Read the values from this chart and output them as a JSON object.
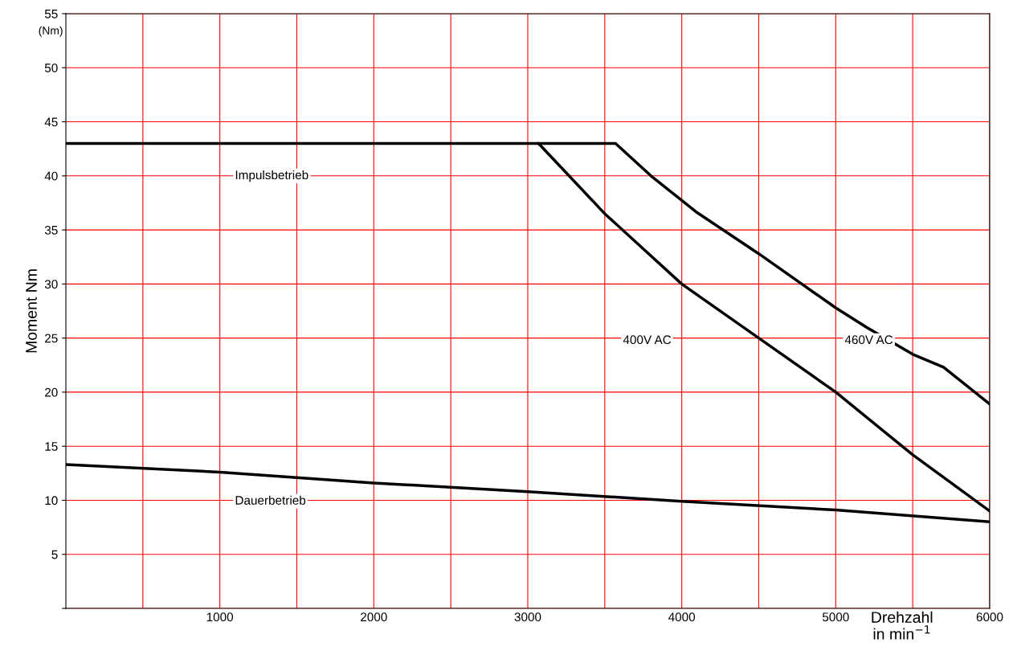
{
  "chart_data": {
    "type": "line",
    "xlabel": "Drehzahl\nin min$^{−1}$",
    "ylabel": "Moment Nm",
    "series": [
      {
        "color": "#000000",
        "x": [
          0,
          3070,
          3500,
          4000,
          4500,
          5000,
          5500,
          6000
        ],
        "values": [
          43,
          43,
          36.5,
          30,
          25,
          20,
          14.2,
          9
        ]
      },
      {
        "color": "#000000",
        "x": [
          3070,
          3570,
          3800,
          4100,
          4500,
          5000,
          5200,
          5500,
          5700,
          6000
        ],
        "values": [
          43,
          43,
          40,
          36.6,
          32.8,
          27.8,
          26,
          23.5,
          22.3,
          18.9
        ]
      },
      {
        "color": "#000000",
        "x": [
          0,
          1000,
          2000,
          3000,
          4000,
          5000,
          6000
        ],
        "values": [
          13.3,
          12.6,
          11.6,
          10.8,
          9.9,
          9.1,
          8.0
        ]
      }
    ],
    "annotations": [
      "(Nm)",
      "Impulsbetrieb",
      "Dauerbetrieb",
      "400V AC",
      "460V AC"
    ],
    "xlim": [
      0,
      6000
    ],
    "xticks": [
      {
        "value": 500,
        "label": null
      },
      1000,
      {
        "value": 1500,
        "label": null
      },
      2000,
      {
        "value": 2500,
        "label": null
      },
      3000,
      {
        "value": 3500,
        "label": null
      },
      4000,
      {
        "value": 4500,
        "label": null
      },
      5000,
      {
        "value": 5500,
        "label": null
      },
      6000
    ],
    "ylim": [
      0,
      55
    ],
    "yticks": [
      {
        "value": 0,
        "label": null
      },
      5,
      10,
      15,
      20,
      25,
      30,
      35,
      40,
      45,
      50,
      55
    ],
    "grid": true,
    "legend": false,
    "marker": "none",
    "line_style": "solid"
  }
}
